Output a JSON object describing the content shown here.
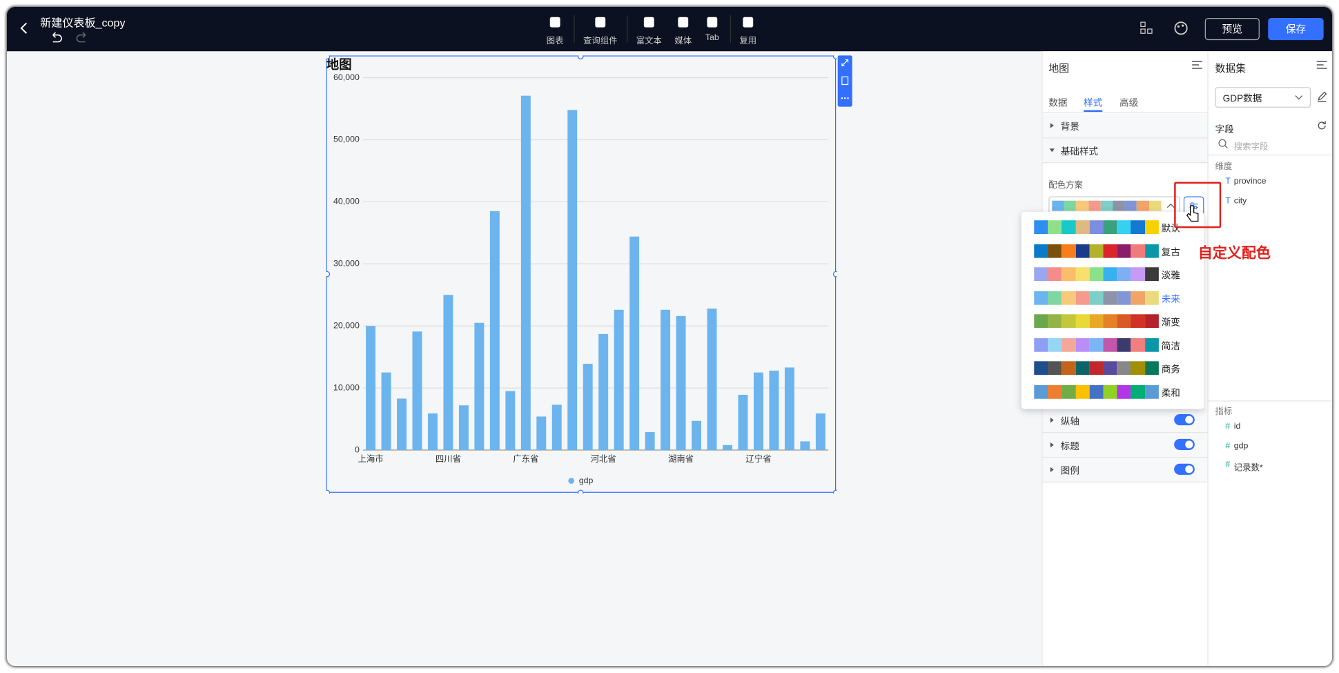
{
  "header": {
    "title": "新建仪表板_copy",
    "toolbar": [
      "图表",
      "查询组件",
      "富文本",
      "媒体",
      "Tab",
      "复用"
    ],
    "preview": "预览",
    "save": "保存"
  },
  "chart_data": {
    "type": "bar",
    "title": "地图",
    "categories": [
      "上海市",
      null,
      null,
      null,
      null,
      "四川省",
      null,
      null,
      null,
      null,
      "广东省",
      null,
      null,
      null,
      null,
      "河北省",
      null,
      null,
      null,
      null,
      "湖南省",
      null,
      null,
      null,
      null,
      "辽宁省",
      null,
      null,
      null,
      null
    ],
    "series": [
      {
        "name": "gdp",
        "color": "#6cb4ee",
        "values": [
          20000,
          12500,
          8300,
          19100,
          5900,
          25000,
          7200,
          20500,
          38500,
          9500,
          57100,
          5400,
          7300,
          54800,
          13900,
          18700,
          22600,
          34400,
          2900,
          22600,
          21600,
          4700,
          22800,
          800,
          8900,
          12500,
          12800,
          13300,
          1400,
          5900
        ]
      }
    ],
    "ylim": [
      0,
      60000
    ],
    "yticks": [
      0,
      {
        "value": 10000,
        "label": "10,000"
      },
      {
        "value": 20000,
        "label": "20,000"
      },
      {
        "value": 30000,
        "label": "30,000"
      },
      {
        "value": 40000,
        "label": "40,000"
      },
      {
        "value": 50000,
        "label": "50,000"
      },
      {
        "value": 60000,
        "label": "60,000"
      }
    ],
    "grid": true,
    "legend": "bottom"
  },
  "style_panel": {
    "title": "地图",
    "tabs": [
      {
        "label": "数据",
        "active": false
      },
      {
        "label": "样式",
        "active": true
      },
      {
        "label": "高级",
        "active": false
      }
    ],
    "sections": [
      {
        "label": "背景",
        "expanded": false
      },
      {
        "label": "基础样式",
        "expanded": true
      }
    ],
    "color_scheme_label": "配色方案",
    "schemes": [
      {
        "name": "默认",
        "colors": [
          "#2e8ff0",
          "#8ee08b",
          "#19c9c9",
          "#e0b882",
          "#7c8ee0",
          "#3aa17e",
          "#36d0f0",
          "#1479d2",
          "#f7d100"
        ]
      },
      {
        "name": "复古",
        "colors": [
          "#0a7bc8",
          "#7a4f10",
          "#f77d1d",
          "#1b3a8c",
          "#b5b12a",
          "#d8262a",
          "#8a1e6a",
          "#f07b7b",
          "#0a98a8"
        ]
      },
      {
        "name": "淡雅",
        "colors": [
          "#9aa6f0",
          "#f48c8c",
          "#fbbd6c",
          "#f7e06c",
          "#8be08b",
          "#37b1f0",
          "#7cb0f3",
          "#c79af5",
          "#3b3b3b"
        ]
      },
      {
        "name": "未来",
        "colors": [
          "#6cb4ee",
          "#7ed6a0",
          "#f9c97b",
          "#f59a8c",
          "#7ccec8",
          "#8e93a8",
          "#8196d6",
          "#f1a467",
          "#ebd97e"
        ],
        "selected": true
      },
      {
        "name": "渐变",
        "colors": [
          "#6aa84f",
          "#93b447",
          "#c2c83a",
          "#e8d936",
          "#e9a928",
          "#e38226",
          "#d95a27",
          "#d13226",
          "#b4222a"
        ]
      },
      {
        "name": "简洁",
        "colors": [
          "#8f9ef5",
          "#96d6f5",
          "#f5a89a",
          "#b98ef5",
          "#7db4f5",
          "#c356a8",
          "#3c3a6e",
          "#f08080",
          "#0a98a8"
        ]
      },
      {
        "name": "商务",
        "colors": [
          "#1e4e8c",
          "#545454",
          "#c2641a",
          "#0b6468",
          "#c0282c",
          "#5a4b9c",
          "#888888",
          "#a09000",
          "#08785a"
        ]
      },
      {
        "name": "柔和",
        "colors": [
          "#5b9bd5",
          "#ed7d31",
          "#70ad47",
          "#ffc000",
          "#4472c4",
          "#91d024",
          "#b235e6",
          "#02ae75",
          "#5b9bd5"
        ]
      }
    ],
    "toggles": [
      {
        "label": "纵轴",
        "enabled": true
      },
      {
        "label": "标题",
        "enabled": true
      },
      {
        "label": "图例",
        "enabled": true
      }
    ]
  },
  "annotation": "自定义配色",
  "dataset_panel": {
    "title": "数据集",
    "dataset": "GDP数据",
    "fields_label": "字段",
    "search_placeholder": "搜索字段",
    "dimension_label": "维度",
    "dimensions": [
      {
        "icon": "T",
        "name": "province"
      },
      {
        "icon": "T",
        "name": "city"
      }
    ],
    "metric_label": "指标",
    "metrics": [
      {
        "icon": "#",
        "name": "id"
      },
      {
        "icon": "#",
        "name": "gdp"
      },
      {
        "icon": "#",
        "name": "记录数*"
      }
    ]
  }
}
